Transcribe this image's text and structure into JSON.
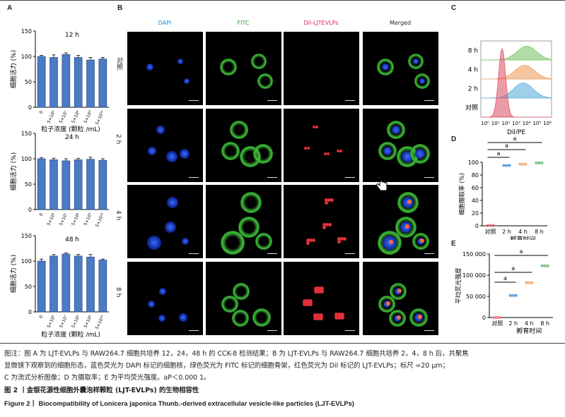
{
  "panels": {
    "A": {
      "letter": "A",
      "charts": [
        {
          "title": "12 h",
          "values": [
            100,
            98,
            104,
            98,
            93,
            95
          ],
          "errors": [
            2,
            5,
            3,
            4,
            5,
            3
          ]
        },
        {
          "title": "24 h",
          "values": [
            100,
            98,
            96,
            98,
            99,
            97
          ],
          "errors": [
            2,
            3,
            4,
            3,
            4,
            3
          ]
        },
        {
          "title": "48 h",
          "values": [
            100,
            110,
            114,
            110,
            108,
            102
          ],
          "errors": [
            4,
            3,
            2,
            3,
            5,
            2
          ]
        }
      ],
      "ylabel": "细胞活力 (%)",
      "xlabel": "粒子浓度 (颗粒 /mL)",
      "categories": [
        "0",
        "5×10⁶",
        "5×10⁷",
        "5×10⁸",
        "5×10⁹",
        "5×10¹⁰"
      ],
      "yticks": [
        "0",
        "50",
        "100",
        "150"
      ]
    },
    "B": {
      "letter": "B",
      "columns": [
        "DAPI",
        "FITC",
        "Dil-LJTEVLPs",
        "Merged"
      ],
      "column_colors": [
        "#1e90d6",
        "#2ca02c",
        "#d62765",
        "#222222"
      ],
      "rows": [
        "对照",
        "2 h",
        "4 h",
        "8 h"
      ]
    },
    "C": {
      "letter": "C",
      "rows": [
        "8 h",
        "4 h",
        "2 h",
        "对照"
      ],
      "row_colors": [
        "#7cc76a",
        "#f0a060",
        "#5fb0dc",
        "#e05a6a"
      ],
      "xticks": [
        "10⁰",
        "10¹",
        "10²",
        "10³",
        "10⁴",
        "10⁵",
        "10⁶"
      ],
      "xlabel": "Dil/PE"
    },
    "D": {
      "letter": "D",
      "ylabel": "细胞摄取率 (%)",
      "xlabel": "孵育时间",
      "categories": [
        "对照",
        "2 h",
        "4 h",
        "8 h"
      ],
      "values": [
        0.5,
        95,
        97,
        99
      ],
      "yticks": [
        "0",
        "20",
        "40",
        "60",
        "80",
        "100"
      ],
      "sig": "a"
    },
    "E": {
      "letter": "E",
      "ylabel": "平均荧光强度",
      "xlabel": "孵育时间",
      "categories": [
        "对照",
        "2 h",
        "4 h",
        "8 h"
      ],
      "values": [
        0,
        52000,
        82000,
        122000
      ],
      "yticks": [
        "0",
        "50 000",
        "100 000",
        "150 000"
      ],
      "sig": "a"
    }
  },
  "caption": {
    "note_line1": "图注：图 A 为 LJT-EVLPs 与 RAW264.7 细胞共培养 12，24，48 h 的 CCK-8 检测结果；B 为 LJT-EVLPs 与 RAW264.7 细胞共培养 2，4，8 h 后，共聚焦",
    "note_line2": "显微镜下观察到的细胞形态，蓝色荧光为 DAPI 标记的细胞核，绿色荧光为 FITC 标记的细胞骨架，红色荧光为 Dil 标记的 LJT-EVLPs；标尺 =20 μm；",
    "note_line3": "C 为流式分析图像；D 为摄取率；E 为平均荧光强度。aP＜0.000 1。",
    "title_cn": "图 2 丨金银花源性细胞外囊泡样颗粒 (LJT-EVLPs) 的生物相容性",
    "title_en": "Figure 2丨 Biocompatibility of Lonicera japonica Thunb.-derived extracellular vesicle-like particles (LJT-EVLPs)"
  },
  "chart_data": [
    {
      "type": "bar",
      "title": "12 h",
      "categories": [
        "0",
        "5×10⁶",
        "5×10⁷",
        "5×10⁸",
        "5×10⁹",
        "5×10¹⁰"
      ],
      "values": [
        100,
        98,
        104,
        98,
        93,
        95
      ],
      "xlabel": "粒子浓度 (颗粒 /mL)",
      "ylabel": "细胞活力 (%)",
      "ylim": [
        0,
        150
      ]
    },
    {
      "type": "bar",
      "title": "24 h",
      "categories": [
        "0",
        "5×10⁶",
        "5×10⁷",
        "5×10⁸",
        "5×10⁹",
        "5×10¹⁰"
      ],
      "values": [
        100,
        98,
        96,
        98,
        99,
        97
      ],
      "xlabel": "粒子浓度 (颗粒 /mL)",
      "ylabel": "细胞活力 (%)",
      "ylim": [
        0,
        150
      ]
    },
    {
      "type": "bar",
      "title": "48 h",
      "categories": [
        "0",
        "5×10⁶",
        "5×10⁷",
        "5×10⁸",
        "5×10⁹",
        "5×10¹⁰"
      ],
      "values": [
        100,
        110,
        114,
        110,
        108,
        102
      ],
      "xlabel": "粒子浓度 (颗粒 /mL)",
      "ylabel": "细胞活力 (%)",
      "ylim": [
        0,
        150
      ]
    },
    {
      "type": "scatter",
      "categories": [
        "对照",
        "2 h",
        "4 h",
        "8 h"
      ],
      "values": [
        0.5,
        95,
        97,
        99
      ],
      "xlabel": "孵育时间",
      "ylabel": "细胞摄取率 (%)",
      "ylim": [
        0,
        100
      ]
    },
    {
      "type": "scatter",
      "categories": [
        "对照",
        "2 h",
        "4 h",
        "8 h"
      ],
      "values": [
        0,
        52000,
        82000,
        122000
      ],
      "xlabel": "孵育时间",
      "ylabel": "平均荧光强度",
      "ylim": [
        0,
        150000
      ]
    }
  ]
}
